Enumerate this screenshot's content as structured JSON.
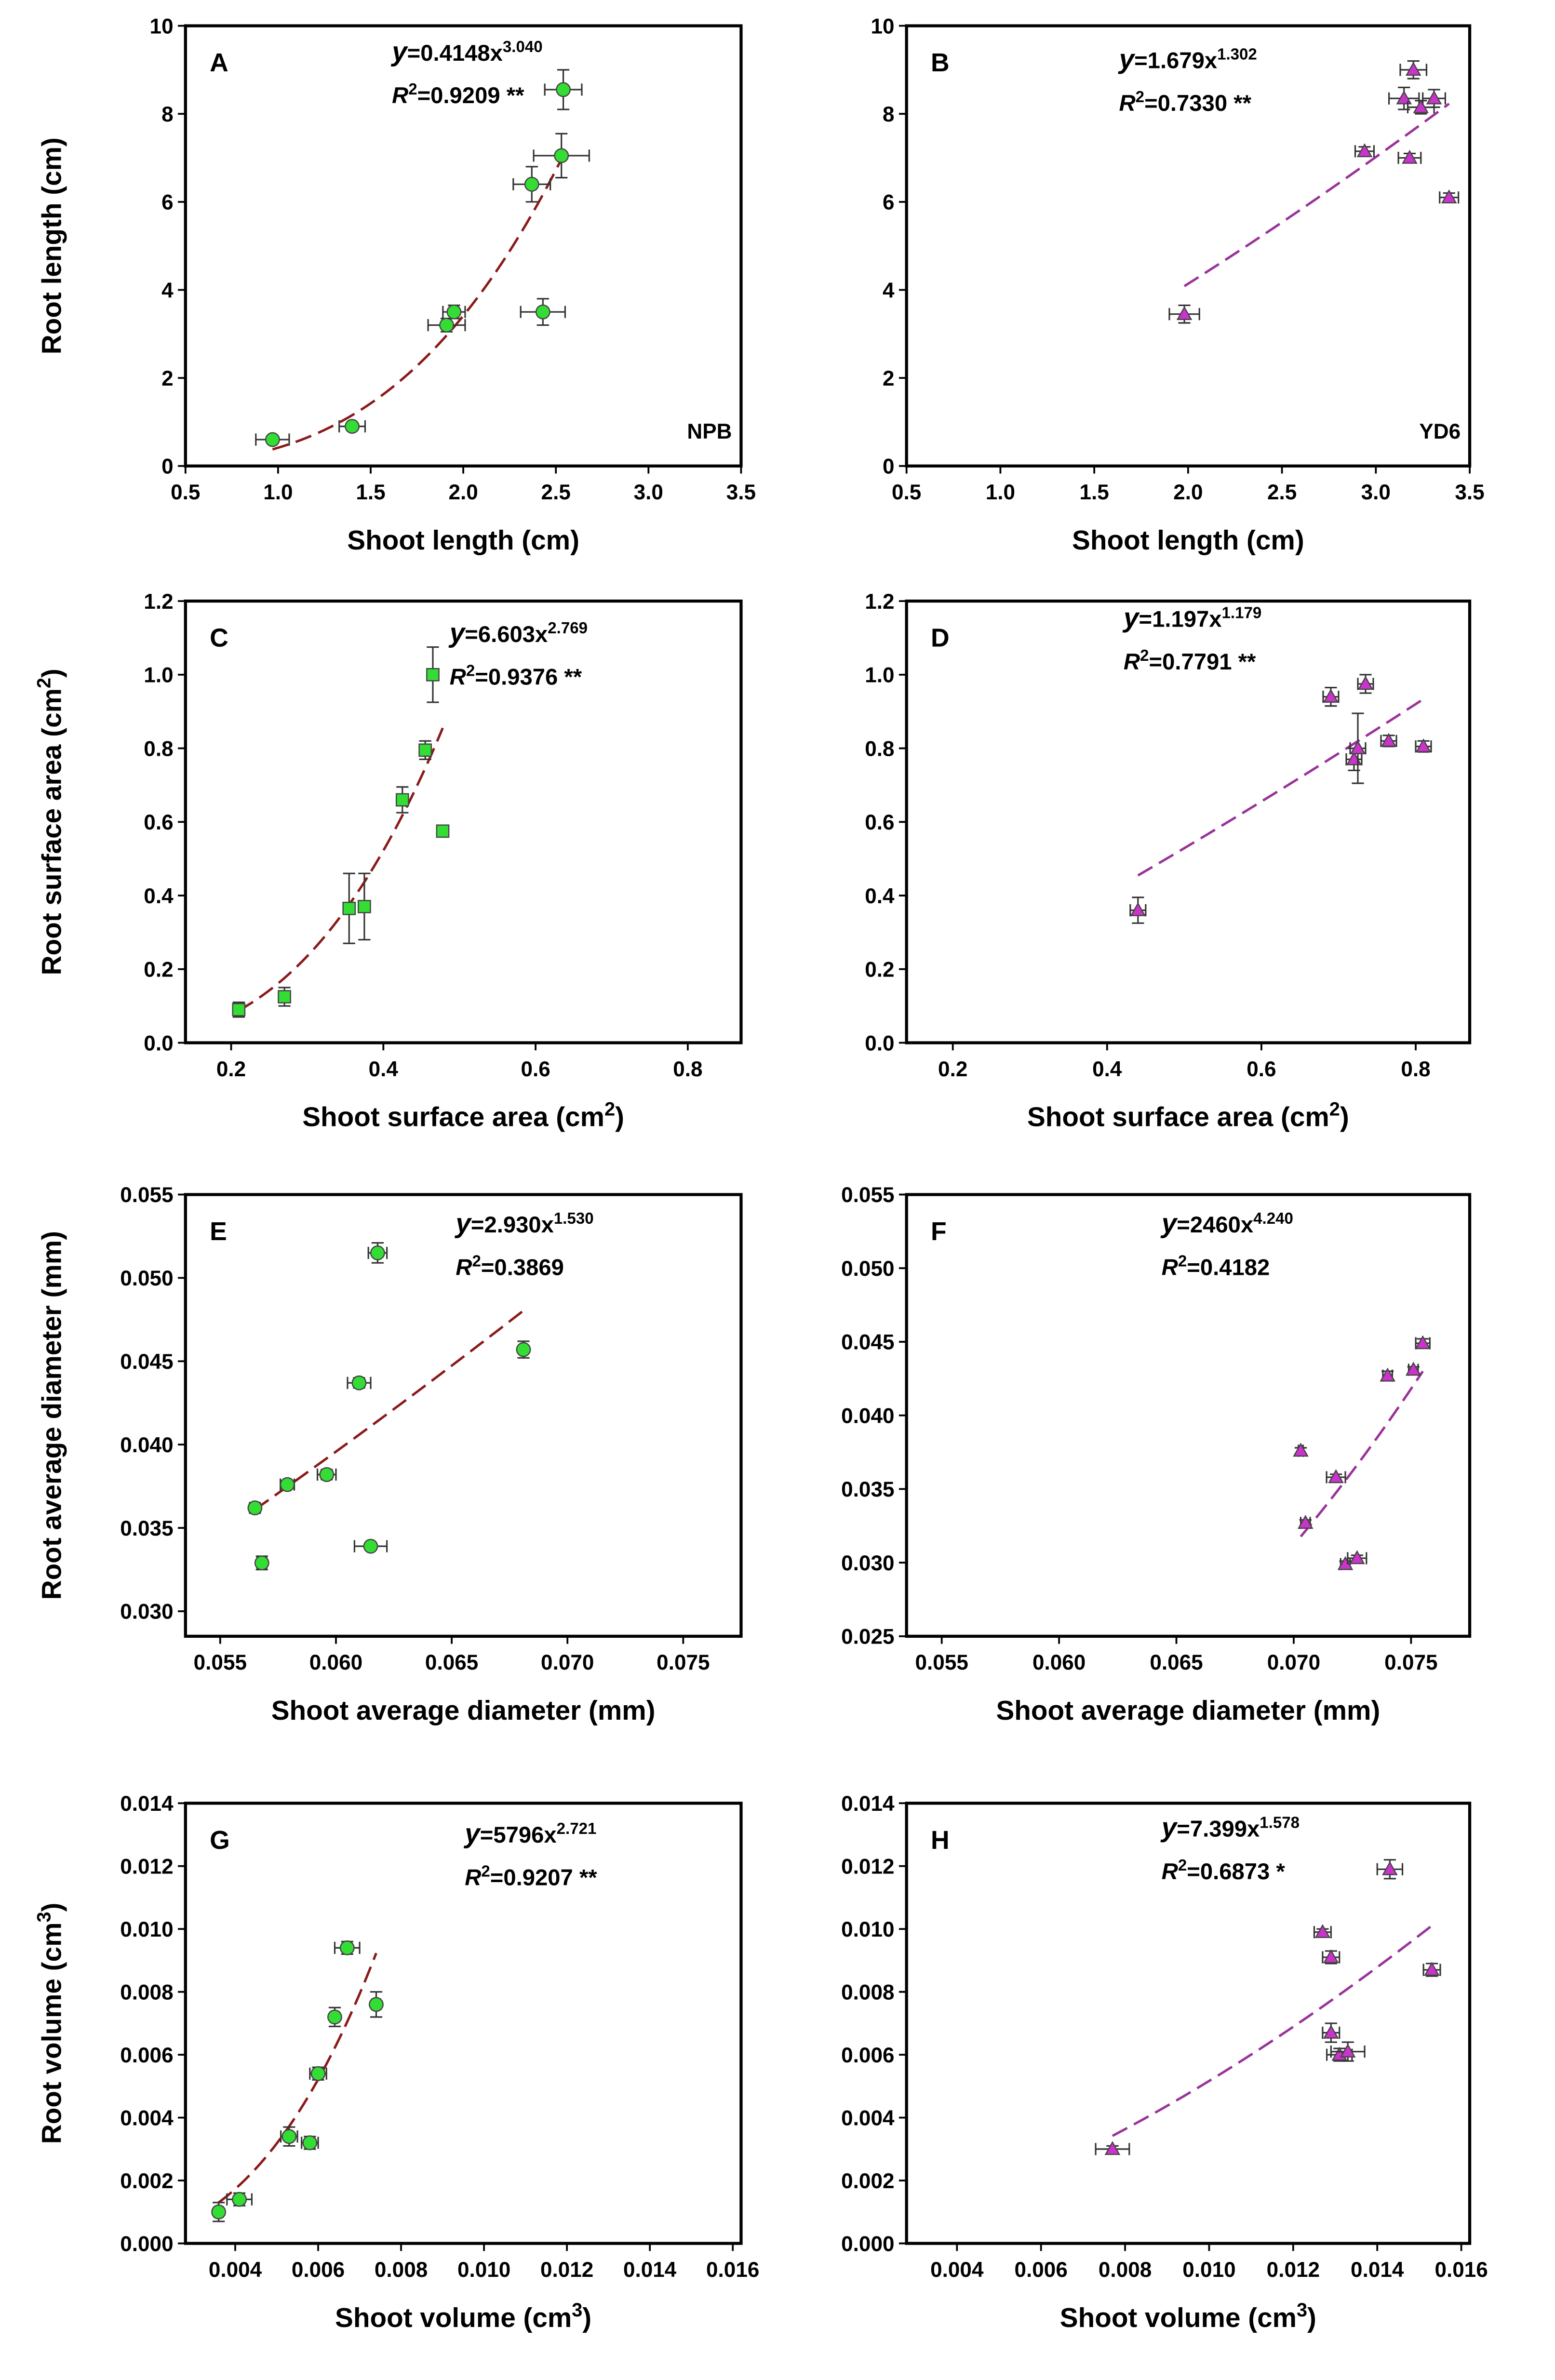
{
  "chart_data": [
    {
      "type": "scatter",
      "panel": "A",
      "annotation": "NPB",
      "fit_label": [
        "y",
        "=0.4148x",
        "3.040"
      ],
      "r2_label": [
        "R",
        "2",
        "=0.9209 **"
      ],
      "xlabel": [
        "Shoot length (cm)"
      ],
      "ylabel": [
        "Root length (cm)"
      ],
      "x": [
        0.97,
        1.4,
        1.91,
        1.95,
        2.37,
        2.43,
        2.53,
        2.54
      ],
      "values": [
        0.6,
        0.9,
        3.2,
        3.5,
        6.4,
        3.5,
        7.05,
        8.55
      ],
      "x_err": [
        0.09,
        0.07,
        0.1,
        0.06,
        0.1,
        0.12,
        0.15,
        0.1
      ],
      "y_err": [
        0.05,
        0.05,
        0.15,
        0.15,
        0.4,
        0.3,
        0.5,
        0.45
      ],
      "fit": {
        "a": 0.4148,
        "b": 3.04
      },
      "marker": "circle",
      "color": "#33dd33",
      "line_color": "#8b1a1a",
      "xlim": [
        0.5,
        3.5
      ],
      "ylim": [
        0,
        10
      ],
      "xticks": [
        0.5,
        {
          "value": 1,
          "label": "1.0"
        },
        1.5,
        {
          "value": 2,
          "label": "2.0"
        },
        2.5,
        {
          "value": 3,
          "label": "3.0"
        },
        3.5
      ],
      "yticks": [
        0,
        2,
        4,
        6,
        8,
        10
      ]
    },
    {
      "type": "scatter",
      "panel": "B",
      "annotation": "YD6",
      "fit_label": [
        "y",
        "=1.679x",
        "1.302"
      ],
      "r2_label": [
        "R",
        "2",
        "=0.7330 **"
      ],
      "xlabel": [
        "Shoot length (cm)"
      ],
      "x": [
        1.98,
        2.94,
        3.15,
        3.18,
        3.2,
        3.24,
        3.31,
        3.39
      ],
      "values": [
        3.45,
        7.15,
        8.35,
        7.0,
        9.0,
        8.15,
        8.35,
        6.1
      ],
      "x_err": [
        0.08,
        0.05,
        0.08,
        0.06,
        0.07,
        0.07,
        0.06,
        0.05
      ],
      "y_err": [
        0.2,
        0.1,
        0.25,
        0.1,
        0.2,
        0.15,
        0.2,
        0.1
      ],
      "fit": {
        "a": 1.679,
        "b": 1.302
      },
      "marker": "triangle",
      "color": "#cc33cc",
      "line_color": "#993399",
      "xlim": [
        0.5,
        3.5
      ],
      "ylim": [
        0,
        10
      ],
      "xticks": [
        0.5,
        {
          "value": 1,
          "label": "1.0"
        },
        1.5,
        {
          "value": 2,
          "label": "2.0"
        },
        2.5,
        {
          "value": 3,
          "label": "3.0"
        },
        3.5
      ],
      "yticks": [
        0,
        2,
        4,
        6,
        8,
        10
      ]
    },
    {
      "type": "scatter",
      "panel": "C",
      "fit_label": [
        "y",
        "=6.603x",
        "2.769"
      ],
      "r2_label": [
        "R",
        "2",
        "=0.9376 **"
      ],
      "xlabel": [
        "Shoot surface area (cm",
        "2",
        ")"
      ],
      "ylabel": [
        "Root surface area (cm",
        "2",
        ")"
      ],
      "x": [
        0.21,
        0.27,
        0.355,
        0.375,
        0.425,
        0.455,
        0.465,
        0.478
      ],
      "values": [
        0.09,
        0.125,
        0.365,
        0.37,
        0.66,
        0.795,
        1.0,
        0.575
      ],
      "x_err": [
        0.002,
        0.002,
        0.003,
        0.003,
        0.005,
        0.005,
        0.002,
        0.002
      ],
      "y_err": [
        0.02,
        0.025,
        0.095,
        0.09,
        0.035,
        0.025,
        0.075,
        0.01
      ],
      "fit": {
        "a": 6.603,
        "b": 2.769
      },
      "marker": "square",
      "color": "#33dd33",
      "line_color": "#8b1a1a",
      "xlim": [
        0.14,
        0.87
      ],
      "ylim": [
        0,
        1.2
      ],
      "xticks": [
        0.2,
        0.4,
        0.6,
        0.8
      ],
      "yticks": [
        {
          "value": 0,
          "label": "0.0"
        },
        0.2,
        0.4,
        0.6,
        0.8,
        {
          "value": 1,
          "label": "1.0"
        },
        1.2
      ]
    },
    {
      "type": "scatter",
      "panel": "D",
      "fit_label": [
        "y",
        "=1.197x",
        "1.179"
      ],
      "r2_label": [
        "R",
        "2",
        "=0.7791 **"
      ],
      "xlabel": [
        "Shoot surface area (cm",
        "2",
        ")"
      ],
      "x": [
        0.44,
        0.69,
        0.72,
        0.725,
        0.735,
        0.765,
        0.81
      ],
      "values": [
        0.36,
        0.94,
        0.77,
        0.8,
        0.975,
        0.82,
        0.805
      ],
      "x_err": [
        0.01,
        0.01,
        0.01,
        0.01,
        0.01,
        0.01,
        0.01
      ],
      "y_err": [
        0.035,
        0.025,
        0.03,
        0.095,
        0.025,
        0.015,
        0.015
      ],
      "fit": {
        "a": 1.197,
        "b": 1.179
      },
      "marker": "triangle",
      "color": "#cc33cc",
      "line_color": "#993399",
      "xlim": [
        0.14,
        0.87
      ],
      "ylim": [
        0,
        1.2
      ],
      "xticks": [
        0.2,
        0.4,
        0.6,
        0.8
      ],
      "yticks": [
        {
          "value": 0,
          "label": "0.0"
        },
        0.2,
        0.4,
        0.6,
        0.8,
        {
          "value": 1,
          "label": "1.0"
        },
        1.2
      ]
    },
    {
      "type": "scatter",
      "panel": "E",
      "fit_label": [
        "y",
        "=2.930x",
        "1.530"
      ],
      "r2_label": [
        "R",
        "2",
        "=0.3869"
      ],
      "xlabel": [
        "Shoot average  diameter (mm)"
      ],
      "ylabel": [
        "Root average  diameter (mm)"
      ],
      "x": [
        0.0565,
        0.0568,
        0.0579,
        0.0596,
        0.061,
        0.0615,
        0.0618,
        0.0681
      ],
      "values": [
        0.0362,
        0.0329,
        0.0376,
        0.0382,
        0.0437,
        0.0339,
        0.0515,
        0.0457
      ],
      "x_err": [
        0.0002,
        0.0002,
        0.0003,
        0.0004,
        0.0005,
        0.0007,
        0.0004,
        0.0001
      ],
      "y_err": [
        0.0003,
        0.0004,
        0.0002,
        0.0003,
        0.0003,
        0.0001,
        0.0006,
        0.0005
      ],
      "fit": {
        "a": 2.93,
        "b": 1.53
      },
      "marker": "circle",
      "color": "#33dd33",
      "line_color": "#8b1a1a",
      "xlim": [
        0.0535,
        0.0775
      ],
      "ylim": [
        0.0285,
        0.055
      ],
      "xticks": [
        0.055,
        {
          "value": 0.06,
          "label": "0.060"
        },
        0.065,
        {
          "value": 0.07,
          "label": "0.070"
        },
        0.075
      ],
      "yticks": [
        {
          "value": 0.03,
          "label": "0.030"
        },
        0.035,
        {
          "value": 0.04,
          "label": "0.040"
        },
        0.045,
        {
          "value": 0.05,
          "label": "0.050"
        },
        0.055
      ]
    },
    {
      "type": "scatter",
      "panel": "F",
      "fit_label": [
        "y",
        "=2460x",
        "4.240"
      ],
      "r2_label": [
        "R",
        "2",
        "=0.4182"
      ],
      "xlabel": [
        "Shoot average  diameter (mm)"
      ],
      "x": [
        0.0703,
        0.0705,
        0.0718,
        0.0722,
        0.0727,
        0.074,
        0.0751,
        0.0755
      ],
      "values": [
        0.0376,
        0.0327,
        0.0358,
        0.0299,
        0.0303,
        0.0427,
        0.0431,
        0.0449
      ],
      "x_err": [
        0.0001,
        0.0002,
        0.0004,
        0.0002,
        0.0004,
        0.0002,
        0.0002,
        0.0003
      ],
      "y_err": [
        0.0002,
        0.0002,
        0.0002,
        0.0002,
        0.0002,
        0.0003,
        0.0002,
        0.0003
      ],
      "fit": {
        "a": 2460,
        "b": 4.24
      },
      "marker": "triangle",
      "color": "#cc33cc",
      "line_color": "#993399",
      "xlim": [
        0.0535,
        0.0775
      ],
      "ylim": [
        0.025,
        0.055
      ],
      "xticks": [
        0.055,
        {
          "value": 0.06,
          "label": "0.060"
        },
        0.065,
        {
          "value": 0.07,
          "label": "0.070"
        },
        0.075
      ],
      "yticks": [
        0.025,
        {
          "value": 0.03,
          "label": "0.030"
        },
        0.035,
        {
          "value": 0.04,
          "label": "0.040"
        },
        0.045,
        {
          "value": 0.05,
          "label": "0.050"
        },
        0.055
      ]
    },
    {
      "type": "scatter",
      "panel": "G",
      "fit_label": [
        "y",
        "=5796x",
        "2.721"
      ],
      "r2_label": [
        "R",
        "2",
        "=0.9207 **"
      ],
      "xlabel": [
        "Shoot volume (cm",
        "3",
        ")"
      ],
      "ylabel": [
        "Root volume (cm",
        "3",
        ")"
      ],
      "x": [
        0.0036,
        0.0041,
        0.0053,
        0.0058,
        0.006,
        0.0064,
        0.0067,
        0.0074
      ],
      "values": [
        0.001,
        0.0014,
        0.0034,
        0.0032,
        0.0054,
        0.0072,
        0.0094,
        0.0076
      ],
      "x_err": [
        0.0001,
        0.0003,
        0.0002,
        0.0002,
        0.0002,
        0.0001,
        0.0003,
        0.0001
      ],
      "y_err": [
        0.0003,
        0.0002,
        0.0003,
        0.0002,
        0.0002,
        0.0003,
        0.0002,
        0.0004
      ],
      "fit": {
        "a": 5796,
        "b": 2.721
      },
      "marker": "circle",
      "color": "#33dd33",
      "line_color": "#8b1a1a",
      "xlim": [
        0.0028,
        0.0162
      ],
      "ylim": [
        0,
        0.014
      ],
      "xticks": [
        0.004,
        0.006,
        0.008,
        {
          "value": 0.01,
          "label": "0.010"
        },
        0.012,
        0.014,
        0.016
      ],
      "yticks": [
        {
          "value": 0,
          "label": "0.000"
        },
        0.002,
        0.004,
        0.006,
        0.008,
        {
          "value": 0.01,
          "label": "0.010"
        },
        0.012,
        0.014
      ]
    },
    {
      "type": "scatter",
      "panel": "H",
      "fit_label": [
        "y",
        "=7.399x",
        "1.578"
      ],
      "r2_label": [
        "R",
        "2",
        "=0.6873 *"
      ],
      "xlabel": [
        "Shoot volume (cm",
        "3",
        ")"
      ],
      "x": [
        0.0077,
        0.0127,
        0.0129,
        0.0129,
        0.0131,
        0.0133,
        0.0143,
        0.0153
      ],
      "values": [
        0.003,
        0.0099,
        0.0091,
        0.0067,
        0.006,
        0.0061,
        0.0119,
        0.0087
      ],
      "x_err": [
        0.0004,
        0.0002,
        0.0002,
        0.0002,
        0.0003,
        0.0004,
        0.0003,
        0.0002
      ],
      "y_err": [
        0.0001,
        0.0001,
        0.0002,
        0.0003,
        0.0002,
        0.0003,
        0.0003,
        0.0002
      ],
      "fit": {
        "a": 7.399,
        "b": 1.578
      },
      "marker": "triangle",
      "color": "#cc33cc",
      "line_color": "#993399",
      "xlim": [
        0.0028,
        0.0162
      ],
      "ylim": [
        0,
        0.014
      ],
      "xticks": [
        0.004,
        0.006,
        0.008,
        {
          "value": 0.01,
          "label": "0.010"
        },
        0.012,
        0.014,
        0.016
      ],
      "yticks": [
        {
          "value": 0,
          "label": "0.000"
        },
        0.002,
        0.004,
        0.006,
        0.008,
        {
          "value": 0.01,
          "label": "0.010"
        },
        0.012,
        0.014
      ]
    }
  ]
}
